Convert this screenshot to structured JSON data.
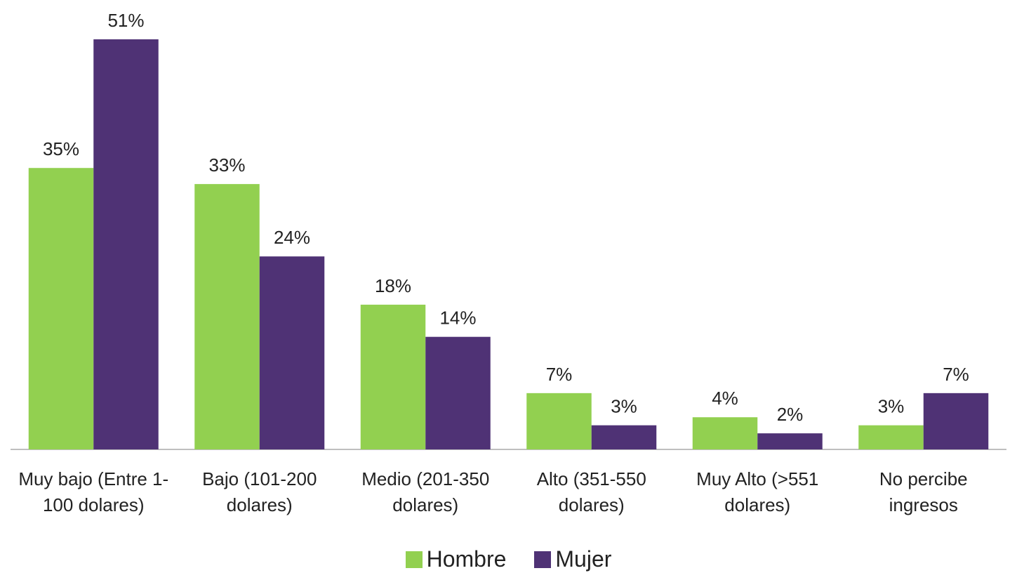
{
  "chart_data": {
    "type": "bar",
    "categories": [
      "Muy bajo (Entre 1-100 dolares)",
      "Bajo (101-200 dolares)",
      "Medio (201-350 dolares)",
      "Alto (351-550 dolares)",
      "Muy Alto (>551 dolares)",
      "No percibe ingresos"
    ],
    "series": [
      {
        "name": "Hombre",
        "color": "#92d050",
        "values": [
          35,
          33,
          18,
          7,
          4,
          3
        ],
        "value_labels": [
          "35%",
          "33%",
          "18%",
          "7%",
          "4%",
          "3%"
        ]
      },
      {
        "name": "Mujer",
        "color": "#4f3275",
        "values": [
          51,
          24,
          14,
          3,
          2,
          7
        ],
        "value_labels": [
          "51%",
          "24%",
          "14%",
          "3%",
          "2%",
          "7%"
        ]
      }
    ],
    "ylim": [
      0,
      51
    ]
  }
}
